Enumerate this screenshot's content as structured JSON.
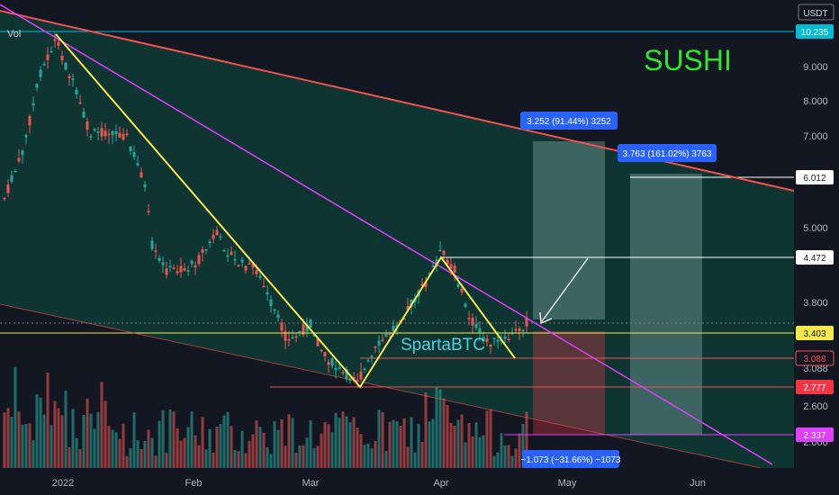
{
  "chart_data": {
    "type": "candlestick",
    "title": "SUSHI",
    "watermark": "SpartaBTC",
    "indicator_label": "Vol",
    "currency": "USDT",
    "y_ticks": [
      "9.000",
      "8.000",
      "7.000",
      "5.000",
      "3.800",
      "3.088",
      "2.600",
      "2.000"
    ],
    "x_ticks": [
      "2022",
      "Feb",
      "Mar",
      "Apr",
      "May",
      "Jun"
    ],
    "price_tags": [
      {
        "label": "10.235",
        "bg": "#00bcd4",
        "fg": "#ffffff",
        "style": "filled"
      },
      {
        "label": "6.012",
        "bg": "#ffffff",
        "fg": "#131722",
        "style": "filled"
      },
      {
        "label": "4.472",
        "bg": "#ffffff",
        "fg": "#131722",
        "style": "filled"
      },
      {
        "label": "3.403",
        "bg": "#f5e94b",
        "fg": "#131722",
        "style": "filled"
      },
      {
        "label": "3.088",
        "bg": "#131722",
        "fg": "#ff4d4d",
        "style": "outline"
      },
      {
        "label": "2.777",
        "bg": "#f23645",
        "fg": "#ffffff",
        "style": "filled"
      },
      {
        "label": "2.337",
        "bg": "#e040fb",
        "fg": "#ffffff",
        "style": "filled"
      }
    ],
    "measurements": [
      {
        "label": "3.252 (91.44%) 3252",
        "color": "#2962ff"
      },
      {
        "label": "3.763 (161.02%) 3763",
        "color": "#2962ff"
      },
      {
        "label": "−1.073 (−31.66%) −1073",
        "color": "#2962ff"
      }
    ],
    "colors": {
      "up": "#26a69a",
      "down": "#ef5350",
      "channel": "#ef5350",
      "trend": "#e040fb",
      "pattern": "#f5e94b",
      "title": "#2ee62e",
      "watermark": "#4dd0e1"
    }
  }
}
